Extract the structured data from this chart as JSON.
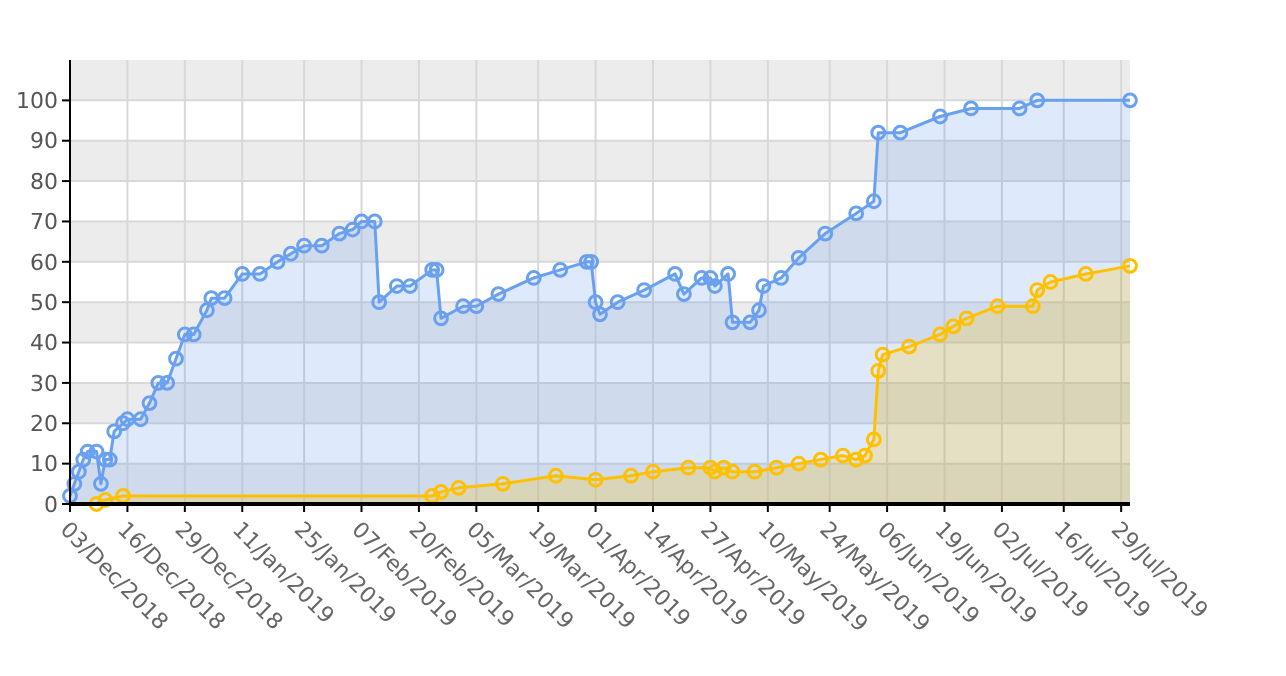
{
  "chart_data": {
    "type": "area",
    "ylim": [
      0,
      110
    ],
    "yticks": [
      0,
      10,
      20,
      30,
      40,
      50,
      60,
      70,
      80,
      90,
      100
    ],
    "xlim": [
      "2018-12-03",
      "2019-07-31"
    ],
    "xticks": [
      {
        "value": "2018-12-03",
        "label": "03/Dec/2018"
      },
      {
        "value": "2018-12-16",
        "label": "16/Dec/2018"
      },
      {
        "value": "2018-12-29",
        "label": "29/Dec/2018"
      },
      {
        "value": "2019-01-11",
        "label": "11/Jan/2019"
      },
      {
        "value": "2019-01-25",
        "label": "25/Jan/2019"
      },
      {
        "value": "2019-02-07",
        "label": "07/Feb/2019"
      },
      {
        "value": "2019-02-20",
        "label": "20/Feb/2019"
      },
      {
        "value": "2019-03-05",
        "label": "05/Mar/2019"
      },
      {
        "value": "2019-03-19",
        "label": "19/Mar/2019"
      },
      {
        "value": "2019-04-01",
        "label": "01/Apr/2019"
      },
      {
        "value": "2019-04-14",
        "label": "14/Apr/2019"
      },
      {
        "value": "2019-04-27",
        "label": "27/Apr/2019"
      },
      {
        "value": "2019-05-10",
        "label": "10/May/2019"
      },
      {
        "value": "2019-05-24",
        "label": "24/May/2019"
      },
      {
        "value": "2019-06-06",
        "label": "06/Jun/2019"
      },
      {
        "value": "2019-06-19",
        "label": "19/Jun/2019"
      },
      {
        "value": "2019-07-02",
        "label": "02/Jul/2019"
      },
      {
        "value": "2019-07-16",
        "label": "16/Jul/2019"
      },
      {
        "value": "2019-07-29",
        "label": "29/Jul/2019"
      }
    ],
    "grid": true,
    "marker": "circle",
    "series": [
      {
        "color": "#6aa0f0",
        "x": [
          "2018-12-03",
          "2018-12-04",
          "2018-12-05",
          "2018-12-06",
          "2018-12-07",
          "2018-12-09",
          "2018-12-10",
          "2018-12-11",
          "2018-12-12",
          "2018-12-13",
          "2018-12-15",
          "2018-12-16",
          "2018-12-19",
          "2018-12-21",
          "2018-12-23",
          "2018-12-25",
          "2018-12-27",
          "2018-12-29",
          "2018-12-31",
          "2019-01-03",
          "2019-01-04",
          "2019-01-07",
          "2019-01-11",
          "2019-01-15",
          "2019-01-19",
          "2019-01-22",
          "2019-01-25",
          "2019-01-29",
          "2019-02-02",
          "2019-02-05",
          "2019-02-07",
          "2019-02-10",
          "2019-02-11",
          "2019-02-15",
          "2019-02-18",
          "2019-02-23",
          "2019-02-24",
          "2019-02-25",
          "2019-03-02",
          "2019-03-05",
          "2019-03-10",
          "2019-03-18",
          "2019-03-24",
          "2019-03-30",
          "2019-03-31",
          "2019-04-01",
          "2019-04-02",
          "2019-04-06",
          "2019-04-12",
          "2019-04-19",
          "2019-04-21",
          "2019-04-25",
          "2019-04-27",
          "2019-04-28",
          "2019-05-01",
          "2019-05-02",
          "2019-05-06",
          "2019-05-08",
          "2019-05-09",
          "2019-05-13",
          "2019-05-17",
          "2019-05-23",
          "2019-05-30",
          "2019-06-03",
          "2019-06-04",
          "2019-06-09",
          "2019-06-18",
          "2019-06-25",
          "2019-07-06",
          "2019-07-10",
          "2019-07-31"
        ],
        "values": [
          2,
          5,
          8,
          11,
          13,
          13,
          5,
          11,
          11,
          18,
          20,
          21,
          21,
          25,
          30,
          30,
          36,
          42,
          42,
          48,
          51,
          51,
          57,
          57,
          60,
          62,
          64,
          64,
          67,
          68,
          70,
          70,
          50,
          54,
          54,
          58,
          58,
          46,
          49,
          49,
          52,
          56,
          58,
          60,
          60,
          50,
          47,
          50,
          53,
          57,
          52,
          56,
          56,
          54,
          57,
          45,
          45,
          48,
          54,
          56,
          61,
          67,
          72,
          75,
          92,
          92,
          96,
          98,
          98,
          100,
          100
        ]
      },
      {
        "color": "#ffc000",
        "x": [
          "2018-12-09",
          "2018-12-11",
          "2018-12-15",
          "2019-02-23",
          "2019-02-25",
          "2019-03-01",
          "2019-03-11",
          "2019-03-23",
          "2019-04-01",
          "2019-04-09",
          "2019-04-14",
          "2019-04-22",
          "2019-04-27",
          "2019-04-28",
          "2019-04-30",
          "2019-05-02",
          "2019-05-07",
          "2019-05-12",
          "2019-05-17",
          "2019-05-22",
          "2019-05-27",
          "2019-05-30",
          "2019-06-01",
          "2019-06-03",
          "2019-06-04",
          "2019-06-05",
          "2019-06-11",
          "2019-06-18",
          "2019-06-21",
          "2019-06-24",
          "2019-07-01",
          "2019-07-09",
          "2019-07-10",
          "2019-07-13",
          "2019-07-21",
          "2019-07-31"
        ],
        "values": [
          0,
          1,
          2,
          2,
          3,
          4,
          5,
          7,
          6,
          7,
          8,
          9,
          9,
          8,
          9,
          8,
          8,
          9,
          10,
          11,
          12,
          11,
          12,
          16,
          33,
          37,
          39,
          42,
          44,
          46,
          49,
          49,
          53,
          55,
          57,
          59
        ]
      }
    ]
  }
}
